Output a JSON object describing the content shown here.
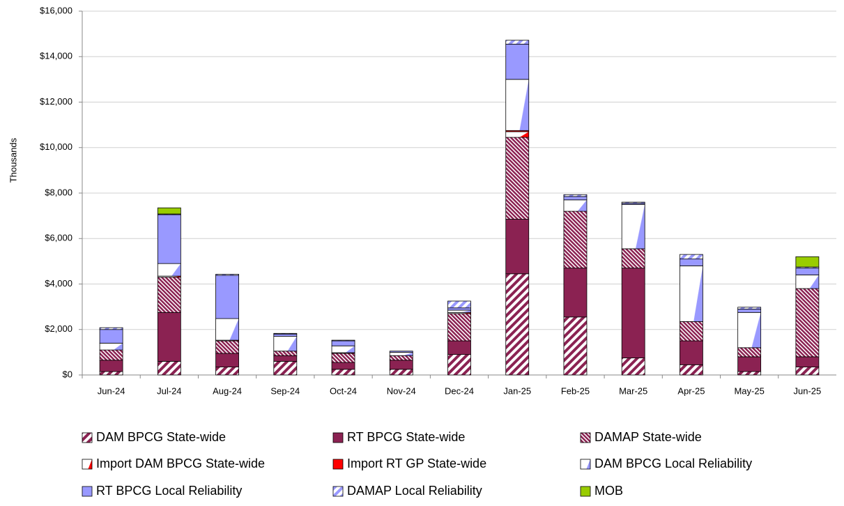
{
  "chart_data": {
    "type": "stacked_bar",
    "y_label": "Thousands",
    "categories": [
      "Jun-24",
      "Jul-24",
      "Aug-24",
      "Sep-24",
      "Oct-24",
      "Nov-24",
      "Dec-24",
      "Jan-25",
      "Feb-25",
      "Mar-25",
      "Apr-25",
      "May-25",
      "Jun-25"
    ],
    "ylim": [
      0,
      16000
    ],
    "yticks": [
      {
        "value": 0,
        "label": "$0"
      },
      {
        "value": 2000,
        "label": "$2,000"
      },
      {
        "value": 4000,
        "label": "$4,000"
      },
      {
        "value": 6000,
        "label": "$6,000"
      },
      {
        "value": 8000,
        "label": "$8,000"
      },
      {
        "value": 10000,
        "label": "$10,000"
      },
      {
        "value": 12000,
        "label": "$12,000"
      },
      {
        "value": 14000,
        "label": "$14,000"
      },
      {
        "value": 16000,
        "label": "$16,000"
      }
    ],
    "grid": true,
    "legend": "bottom",
    "series": [
      {
        "name": "DAM BPCG State-wide",
        "color": "#8b2252",
        "pattern": "wide-diagonal",
        "values": [
          150,
          600,
          350,
          600,
          250,
          250,
          900,
          4450,
          2550,
          750,
          450,
          150,
          350
        ]
      },
      {
        "name": "RT BPCG State-wide",
        "color": "#8b2252",
        "pattern": "solid",
        "values": [
          500,
          2150,
          600,
          250,
          300,
          400,
          600,
          2400,
          2150,
          3950,
          1050,
          650,
          450
        ]
      },
      {
        "name": "DAMAP State-wide",
        "color": "#8b2252",
        "pattern": "dense-diagonal",
        "values": [
          450,
          1550,
          550,
          200,
          400,
          200,
          1200,
          3600,
          2500,
          850,
          850,
          400,
          3000
        ]
      },
      {
        "name": "Import DAM BPCG State-wide",
        "color": "#ff0000",
        "pattern": "half",
        "values": [
          0,
          50,
          30,
          0,
          30,
          0,
          50,
          250,
          0,
          0,
          0,
          0,
          0
        ]
      },
      {
        "name": "Import RT GP State-wide",
        "color": "#ff0000",
        "pattern": "solid",
        "values": [
          0,
          0,
          0,
          0,
          0,
          0,
          0,
          50,
          0,
          0,
          0,
          0,
          0
        ]
      },
      {
        "name": "DAM BPCG Local Reliability",
        "color": "#9999ff",
        "pattern": "half",
        "values": [
          300,
          550,
          950,
          650,
          300,
          150,
          100,
          2250,
          500,
          1950,
          2450,
          1550,
          600
        ]
      },
      {
        "name": "RT BPCG Local Reliability",
        "color": "#9999ff",
        "pattern": "solid",
        "values": [
          600,
          2150,
          1900,
          100,
          220,
          50,
          100,
          1550,
          150,
          50,
          300,
          150,
          300
        ]
      },
      {
        "name": "DAMAP Local Reliability",
        "color": "#9999ff",
        "pattern": "wide-diagonal",
        "values": [
          80,
          30,
          50,
          30,
          30,
          0,
          300,
          170,
          80,
          50,
          200,
          80,
          50
        ]
      },
      {
        "name": "MOB",
        "color": "#99cc00",
        "pattern": "solid",
        "values": [
          0,
          270,
          0,
          0,
          0,
          0,
          0,
          0,
          0,
          0,
          0,
          0,
          450
        ]
      }
    ]
  }
}
